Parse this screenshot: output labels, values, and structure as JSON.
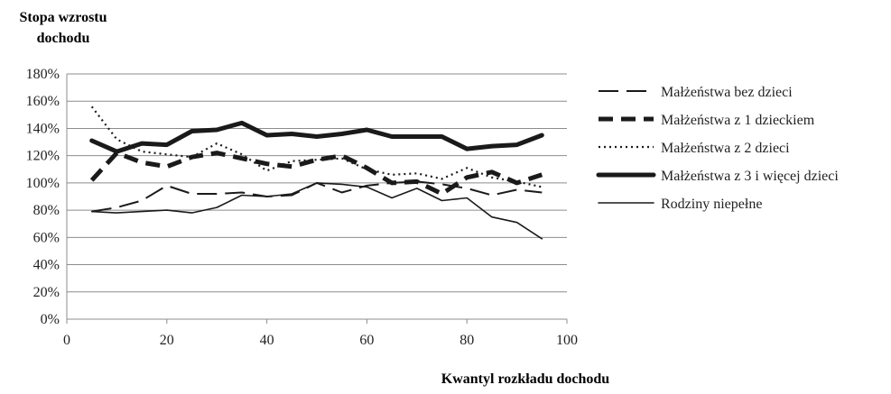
{
  "chart_data": {
    "type": "line",
    "ylabel_lines": [
      "Stopa wzrostu",
      "dochodu"
    ],
    "xlabel": "Kwantyl rozkładu dochodu",
    "xlim": [
      0,
      100
    ],
    "ylim": [
      0,
      180
    ],
    "x_ticks": [
      0,
      20,
      40,
      60,
      80,
      100
    ],
    "y_ticks": [
      0,
      20,
      40,
      60,
      80,
      100,
      120,
      140,
      160,
      180
    ],
    "y_tick_suffix": "%",
    "grid": "horizontal",
    "legend_position": "right",
    "x": [
      5,
      10,
      15,
      20,
      25,
      30,
      35,
      40,
      45,
      50,
      55,
      60,
      65,
      70,
      75,
      80,
      85,
      90,
      95
    ],
    "series": [
      {
        "name": "Małżeństwa bez dzieci",
        "style": "long-dash",
        "values": [
          79,
          82,
          87,
          98,
          92,
          92,
          93,
          90,
          91,
          100,
          93,
          98,
          100,
          101,
          99,
          96,
          91,
          95,
          93
        ]
      },
      {
        "name": "Małżeństwa z 1 dzieckiem",
        "style": "heavy-dash",
        "values": [
          102,
          122,
          115,
          112,
          119,
          122,
          118,
          114,
          112,
          117,
          120,
          111,
          100,
          101,
          92,
          104,
          108,
          100,
          106
        ]
      },
      {
        "name": "Małżeństwa z 2 dzieci",
        "style": "dotted",
        "values": [
          156,
          132,
          123,
          121,
          119,
          129,
          121,
          109,
          116,
          117,
          118,
          110,
          106,
          107,
          103,
          111,
          104,
          101,
          97
        ]
      },
      {
        "name": "Małżeństwa z 3 i więcej dzieci",
        "style": "heavy-solid",
        "values": [
          131,
          123,
          129,
          128,
          138,
          139,
          144,
          135,
          136,
          134,
          136,
          139,
          134,
          134,
          134,
          125,
          127,
          128,
          135
        ]
      },
      {
        "name": "Rodziny niepełne",
        "style": "thin-solid",
        "values": [
          79,
          78,
          79,
          80,
          78,
          82,
          91,
          90,
          92,
          100,
          99,
          97,
          89,
          96,
          87,
          89,
          75,
          71,
          59
        ]
      }
    ]
  },
  "colors": {
    "line": "#1a1a1a",
    "grid": "#8c8c8c",
    "axis": "#8c8c8c"
  }
}
